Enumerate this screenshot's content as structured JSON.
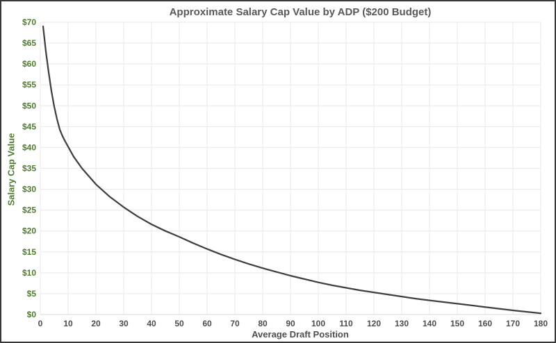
{
  "window": {
    "background": "#ffffff",
    "border_color": "#383838"
  },
  "chart_data": {
    "type": "line",
    "title": "Approximate Salary Cap Value by ADP ($200 Budget)",
    "xlabel": "Average Draft Position",
    "ylabel": "Salary Cap Value",
    "xlim": [
      0,
      180
    ],
    "ylim": [
      0,
      70
    ],
    "x_ticks": [
      0,
      10,
      20,
      30,
      40,
      50,
      60,
      70,
      80,
      90,
      100,
      110,
      120,
      130,
      140,
      150,
      160,
      170,
      180
    ],
    "y_ticks": [
      0,
      5,
      10,
      15,
      20,
      25,
      30,
      35,
      40,
      45,
      50,
      55,
      60,
      65,
      70
    ],
    "y_tick_prefix": "$",
    "grid": true,
    "legend": "none",
    "styles": {
      "title_color": "#595959",
      "x_tick_color": "#4d4d4d",
      "x_title_color": "#4d4d4d",
      "y_tick_color": "#4e7b2f",
      "y_title_color": "#4e7b2f",
      "gridline_color": "#e9e9e9",
      "axis_line_color": "#d9d9d9",
      "line_color": "#3f3f3f",
      "line_width": 2.25
    },
    "series": [
      {
        "name": "Salary Cap Value",
        "x": [
          1,
          2,
          3,
          4,
          5,
          6,
          7,
          8,
          9,
          10,
          12,
          15,
          20,
          25,
          30,
          35,
          40,
          45,
          50,
          55,
          60,
          65,
          70,
          75,
          80,
          85,
          90,
          95,
          100,
          105,
          110,
          115,
          120,
          125,
          130,
          135,
          140,
          145,
          150,
          155,
          160,
          165,
          170,
          175,
          180
        ],
        "y": [
          69,
          63,
          58,
          53.5,
          49.8,
          46.8,
          44.3,
          42.7,
          41.4,
          40.2,
          37.8,
          35,
          31.2,
          28.2,
          25.7,
          23.5,
          21.6,
          20,
          18.6,
          17.1,
          15.7,
          14.4,
          13.2,
          12.1,
          11.1,
          10.2,
          9.3,
          8.5,
          7.7,
          7.0,
          6.4,
          5.8,
          5.3,
          4.8,
          4.3,
          3.8,
          3.4,
          3.0,
          2.6,
          2.2,
          1.8,
          1.4,
          1.0,
          0.65,
          0.3
        ]
      }
    ]
  }
}
